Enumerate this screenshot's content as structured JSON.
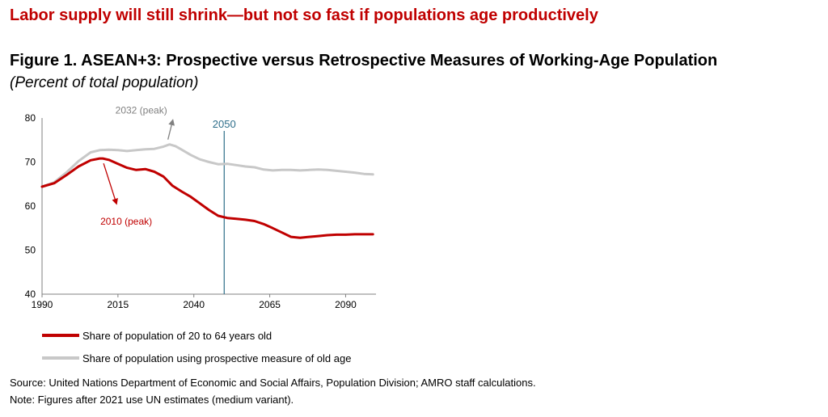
{
  "headline": "Labor supply will still shrink—but not so fast if populations age productively",
  "colors": {
    "headline": "#c00000",
    "series_red": "#c00000",
    "series_gray": "#c8c8c8",
    "marker_line": "#2e6e8a"
  },
  "chart_data": {
    "type": "line",
    "title": "Figure 1. ASEAN+3: Prospective versus Retrospective Measures of Working-Age Population",
    "subtitle": "(Percent of total population)",
    "xlabel": "",
    "ylabel": "",
    "xlim": [
      1990,
      2100
    ],
    "ylim": [
      40,
      80
    ],
    "x_ticks": [
      1990,
      2015,
      2040,
      2065,
      2090
    ],
    "y_ticks": [
      40,
      50,
      60,
      70,
      80
    ],
    "grid": false,
    "legend_position": "bottom-left",
    "series": [
      {
        "name": "Share of population of 20 to 64 years old",
        "color": "#c00000",
        "x": [
          1990,
          1994,
          1998,
          2002,
          2006,
          2009,
          2010,
          2012,
          2015,
          2018,
          2021,
          2024,
          2027,
          2030,
          2033,
          2036,
          2039,
          2042,
          2045,
          2048,
          2051,
          2054,
          2057,
          2060,
          2063,
          2066,
          2069,
          2072,
          2075,
          2078,
          2081,
          2084,
          2087,
          2090,
          2093,
          2096,
          2099
        ],
        "y": [
          64.4,
          65.2,
          67.0,
          69.0,
          70.4,
          70.8,
          70.8,
          70.5,
          69.6,
          68.7,
          68.2,
          68.4,
          67.8,
          66.7,
          64.6,
          63.3,
          62.1,
          60.6,
          59.1,
          57.8,
          57.3,
          57.1,
          56.9,
          56.6,
          55.9,
          55.0,
          54.0,
          53.0,
          52.8,
          53.0,
          53.2,
          53.4,
          53.5,
          53.5,
          53.6,
          53.6,
          53.6
        ]
      },
      {
        "name": "Share of population using prospective measure of old age",
        "color": "#c8c8c8",
        "x": [
          1990,
          1994,
          1998,
          2002,
          2006,
          2009,
          2012,
          2015,
          2018,
          2021,
          2024,
          2027,
          2030,
          2032,
          2034,
          2036,
          2039,
          2042,
          2045,
          2048,
          2051,
          2054,
          2057,
          2060,
          2063,
          2066,
          2069,
          2072,
          2075,
          2078,
          2081,
          2084,
          2087,
          2090,
          2093,
          2096,
          2099
        ],
        "y": [
          64.4,
          65.4,
          67.6,
          70.2,
          72.2,
          72.7,
          72.8,
          72.7,
          72.5,
          72.7,
          72.9,
          73.0,
          73.5,
          74.0,
          73.6,
          72.8,
          71.6,
          70.6,
          70.0,
          69.5,
          69.6,
          69.3,
          69.0,
          68.8,
          68.3,
          68.1,
          68.2,
          68.2,
          68.1,
          68.2,
          68.3,
          68.2,
          68.0,
          67.8,
          67.6,
          67.3,
          67.2
        ]
      }
    ],
    "annotations": [
      {
        "text": "2032 (peak)",
        "series": 1,
        "x": 2032,
        "y": 74.0
      },
      {
        "text": "2010 (peak)",
        "series": 0,
        "x": 2010,
        "y": 70.8
      }
    ],
    "vertical_marker": {
      "x": 2050,
      "label": "2050"
    }
  },
  "source": "Source: United Nations Department of Economic and Social Affairs, Population Division; AMRO staff calculations.",
  "note": "Note: Figures after 2021 use UN estimates (medium variant)."
}
